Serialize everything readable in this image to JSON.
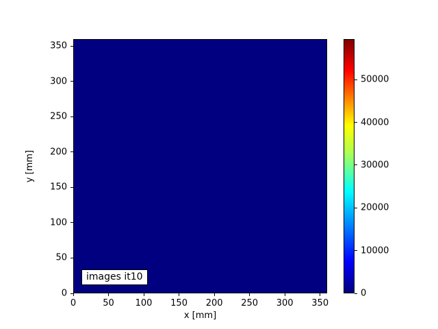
{
  "figure": {
    "background": "#ffffff",
    "title": ""
  },
  "annotation": {
    "text": "images it10",
    "position": "lower-left"
  },
  "chart_data": {
    "type": "heatmap",
    "title": "",
    "xlabel": "x [mm]",
    "ylabel": "y [mm]",
    "xlim": [
      0,
      360
    ],
    "ylim": [
      0,
      360
    ],
    "x_ticks": [
      0,
      50,
      100,
      150,
      200,
      250,
      300,
      350
    ],
    "y_ticks": [
      0,
      50,
      100,
      150,
      200,
      250,
      300,
      350
    ],
    "grid": false,
    "values": {
      "description": "uniform field at colormap minimum across entire 0-360 mm x 0-360 mm region",
      "uniform_value": 0
    },
    "annotations": [
      "images it10"
    ],
    "colorbar": {
      "colormap": "jet",
      "range": [
        0,
        59500
      ],
      "ticks": [
        0,
        10000,
        20000,
        30000,
        40000,
        50000
      ],
      "position": "right"
    }
  },
  "colors": {
    "plot_fill": "#000080",
    "text": "#000000",
    "axes": "#000000",
    "annotation_bg": "#ffffff",
    "annotation_border": "#000000",
    "jet_gradient_stops": [
      "#000080 0%",
      "#0000ff 12.5%",
      "#00ffff 40%",
      "#aaff55 55%",
      "#ffff00 66%",
      "#ff0000 88%",
      "#800000 100%"
    ]
  }
}
